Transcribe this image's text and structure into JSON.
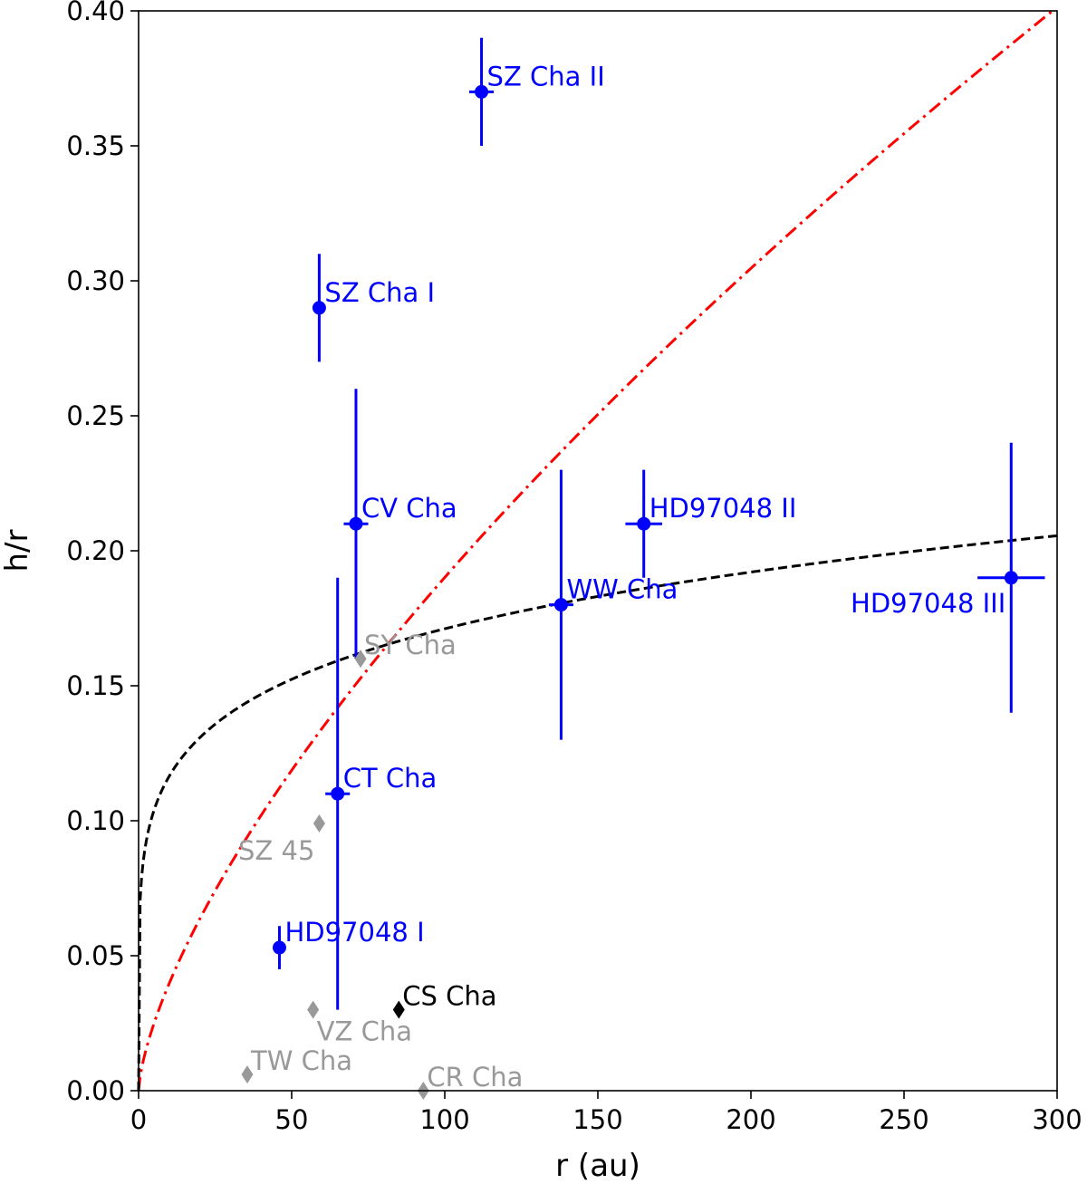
{
  "chart_data": {
    "type": "scatter",
    "xlabel": "r (au)",
    "ylabel": "h/r",
    "xlim": [
      0,
      300
    ],
    "ylim": [
      0.0,
      0.4
    ],
    "x_ticks": [
      0,
      50,
      100,
      150,
      200,
      250,
      300
    ],
    "x_tick_labels": [
      "0",
      "50",
      "100",
      "150",
      "200",
      "250",
      "300"
    ],
    "y_ticks": [
      0.0,
      0.05,
      0.1,
      0.15,
      0.2,
      0.25,
      0.3,
      0.35,
      0.4
    ],
    "y_tick_labels": [
      "0.00",
      "0.05",
      "0.10",
      "0.15",
      "0.20",
      "0.25",
      "0.30",
      "0.35",
      "0.40"
    ],
    "grid": false,
    "colors": {
      "measured": "#0000ff",
      "upper_limit_gray": "#999999",
      "upper_limit_black": "#000000",
      "curve_red": "#ff0000",
      "curve_black": "#000000"
    },
    "series": [
      {
        "marker": "circle",
        "color": "#0000ff",
        "points": [
          {
            "label": "SZ Cha II",
            "x": 112,
            "y": 0.37,
            "xerr": 4,
            "yerr": 0.02,
            "label_anchor": "right"
          },
          {
            "label": "SZ Cha I",
            "x": 59,
            "y": 0.29,
            "xerr": 2,
            "yerr": 0.02,
            "label_anchor": "right"
          },
          {
            "label": "CV Cha",
            "x": 71,
            "y": 0.21,
            "xerr": 4,
            "yerr": 0.05,
            "label_anchor": "right"
          },
          {
            "label": "HD97048 II",
            "x": 165,
            "y": 0.21,
            "xerr": 6,
            "yerr": 0.02,
            "label_anchor": "right"
          },
          {
            "label": "WW Cha",
            "x": 138,
            "y": 0.18,
            "xerr": 4,
            "yerr": 0.05,
            "label_anchor": "right"
          },
          {
            "label": "HD97048 III",
            "x": 285,
            "y": 0.19,
            "xerr": 11,
            "yerr": 0.05,
            "label_anchor": "left"
          },
          {
            "label": "CT Cha",
            "x": 65,
            "y": 0.11,
            "xerr": 4,
            "yerr": 0.08,
            "label_anchor": "right"
          },
          {
            "label": "HD97048 I",
            "x": 46,
            "y": 0.053,
            "xerr": 0,
            "yerr": 0.008,
            "label_anchor": "right"
          }
        ]
      },
      {
        "marker": "diamond",
        "color": "#999999",
        "points": [
          {
            "label": "SY Cha",
            "x": 72.5,
            "y": 0.16,
            "label_anchor": "right"
          },
          {
            "label": "SZ 45",
            "x": 59,
            "y": 0.099,
            "label_anchor": "below-left"
          },
          {
            "label": "VZ Cha",
            "x": 57,
            "y": 0.03,
            "label_anchor": "below-right"
          },
          {
            "label": "TW Cha",
            "x": 35.5,
            "y": 0.006,
            "label_anchor": "right"
          },
          {
            "label": "CR Cha",
            "x": 93,
            "y": 0.0,
            "label_anchor": "right"
          }
        ]
      },
      {
        "marker": "diamond",
        "color": "#000000",
        "points": [
          {
            "label": "CS Cha",
            "x": 85,
            "y": 0.03,
            "label_anchor": "right"
          }
        ]
      }
    ],
    "curves": [
      {
        "style": "dashdot",
        "color": "#ff0000",
        "model": "power",
        "coef": 0.0083,
        "exponent": 0.68
      },
      {
        "style": "dashed",
        "color": "#000000",
        "model": "power",
        "coef": 0.0793,
        "exponent": 0.167
      }
    ]
  }
}
